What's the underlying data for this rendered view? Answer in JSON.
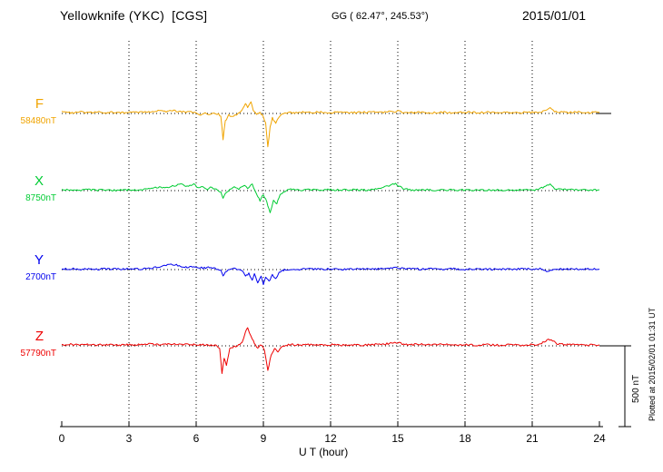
{
  "header": {
    "title": "Yellowknife (YKC)  [CGS]",
    "gg": "GG ( 62.47°, 245.53°)",
    "date": "2015/01/01"
  },
  "axis": {
    "xlabel": "U T (hour)",
    "tick_labels": [
      "0",
      "3",
      "6",
      "9",
      "12",
      "15",
      "18",
      "21",
      "24"
    ]
  },
  "scale_bar": {
    "label": "500 nT"
  },
  "plotted_at": "Plotted at 2015/02/01 01:31 UT",
  "chart_data": {
    "type": "line",
    "title": "Yellowknife (YKC) [CGS] magnetogram",
    "date": "2015/01/01",
    "gg_coordinates": "62.47°, 245.53°",
    "xlabel": "U T (hour)",
    "x_unit": "hour",
    "x_range": [
      0,
      24
    ],
    "x_ticks": [
      0,
      3,
      6,
      9,
      12,
      15,
      18,
      21,
      24
    ],
    "grid": "vertical-dotted-every-3h",
    "scale_bar_nT": 500,
    "series": [
      {
        "name": "F",
        "baseline_label": "58480nT",
        "baseline_nT": 58480,
        "color": "#f0a400",
        "points": [
          [
            0,
            8
          ],
          [
            0.4,
            5
          ],
          [
            0.8,
            9
          ],
          [
            1.2,
            5
          ],
          [
            1.6,
            8
          ],
          [
            2,
            5
          ],
          [
            2.4,
            8
          ],
          [
            2.8,
            5
          ],
          [
            3.2,
            8
          ],
          [
            3.6,
            6
          ],
          [
            4,
            10
          ],
          [
            4.3,
            16
          ],
          [
            4.6,
            10
          ],
          [
            5,
            18
          ],
          [
            5.3,
            12
          ],
          [
            5.6,
            9
          ],
          [
            6,
            5
          ],
          [
            6.2,
            -8
          ],
          [
            6.4,
            3
          ],
          [
            6.6,
            -6
          ],
          [
            6.8,
            2
          ],
          [
            7,
            -5
          ],
          [
            7.1,
            -18
          ],
          [
            7.2,
            -160
          ],
          [
            7.3,
            -45
          ],
          [
            7.45,
            -12
          ],
          [
            7.6,
            -22
          ],
          [
            7.8,
            -6
          ],
          [
            8,
            12
          ],
          [
            8.1,
            35
          ],
          [
            8.2,
            62
          ],
          [
            8.3,
            40
          ],
          [
            8.45,
            75
          ],
          [
            8.55,
            22
          ],
          [
            8.7,
            -8
          ],
          [
            8.85,
            6
          ],
          [
            9,
            -18
          ],
          [
            9.1,
            -60
          ],
          [
            9.2,
            -205
          ],
          [
            9.3,
            -85
          ],
          [
            9.4,
            -28
          ],
          [
            9.55,
            -65
          ],
          [
            9.7,
            -18
          ],
          [
            9.9,
            0
          ],
          [
            10.1,
            7
          ],
          [
            10.4,
            3
          ],
          [
            10.7,
            9
          ],
          [
            11,
            5
          ],
          [
            11.5,
            9
          ],
          [
            12,
            5
          ],
          [
            12.5,
            8
          ],
          [
            13,
            5
          ],
          [
            13.5,
            8
          ],
          [
            14,
            9
          ],
          [
            14.3,
            5
          ],
          [
            14.6,
            13
          ],
          [
            14.8,
            7
          ],
          [
            15,
            15
          ],
          [
            15.2,
            9
          ],
          [
            15.5,
            5
          ],
          [
            16,
            8
          ],
          [
            16.5,
            4
          ],
          [
            17,
            7
          ],
          [
            17.5,
            5
          ],
          [
            18,
            8
          ],
          [
            18.5,
            5
          ],
          [
            19,
            7
          ],
          [
            19.5,
            4
          ],
          [
            20,
            7
          ],
          [
            20.5,
            5
          ],
          [
            21,
            8
          ],
          [
            21.3,
            5
          ],
          [
            21.6,
            22
          ],
          [
            21.8,
            38
          ],
          [
            22,
            12
          ],
          [
            22.3,
            8
          ],
          [
            22.6,
            6
          ],
          [
            23,
            9
          ],
          [
            23.5,
            6
          ],
          [
            24,
            8
          ]
        ]
      },
      {
        "name": "X",
        "baseline_label": "8750nT",
        "baseline_nT": 8750,
        "color": "#00cc33",
        "points": [
          [
            0,
            4
          ],
          [
            0.4,
            7
          ],
          [
            0.8,
            3
          ],
          [
            1.2,
            6
          ],
          [
            1.6,
            3
          ],
          [
            2,
            6
          ],
          [
            2.4,
            2
          ],
          [
            2.8,
            5
          ],
          [
            3.2,
            3
          ],
          [
            3.6,
            7
          ],
          [
            4,
            10
          ],
          [
            4.3,
            22
          ],
          [
            4.6,
            15
          ],
          [
            5,
            30
          ],
          [
            5.3,
            42
          ],
          [
            5.6,
            28
          ],
          [
            5.9,
            38
          ],
          [
            6.1,
            18
          ],
          [
            6.3,
            28
          ],
          [
            6.5,
            10
          ],
          [
            6.7,
            22
          ],
          [
            6.9,
            5
          ],
          [
            7.1,
            -12
          ],
          [
            7.2,
            -50
          ],
          [
            7.3,
            -18
          ],
          [
            7.5,
            8
          ],
          [
            7.7,
            28
          ],
          [
            7.9,
            12
          ],
          [
            8.1,
            32
          ],
          [
            8.3,
            18
          ],
          [
            8.5,
            38
          ],
          [
            8.7,
            -18
          ],
          [
            8.85,
            -60
          ],
          [
            9,
            -25
          ],
          [
            9.15,
            -70
          ],
          [
            9.3,
            -140
          ],
          [
            9.45,
            -55
          ],
          [
            9.6,
            -80
          ],
          [
            9.75,
            -28
          ],
          [
            9.9,
            -8
          ],
          [
            10.1,
            5
          ],
          [
            10.4,
            9
          ],
          [
            10.7,
            3
          ],
          [
            11,
            7
          ],
          [
            11.5,
            3
          ],
          [
            12,
            6
          ],
          [
            12.5,
            3
          ],
          [
            13,
            6
          ],
          [
            13.5,
            3
          ],
          [
            14,
            9
          ],
          [
            14.3,
            18
          ],
          [
            14.6,
            32
          ],
          [
            14.9,
            42
          ],
          [
            15.1,
            22
          ],
          [
            15.3,
            9
          ],
          [
            15.6,
            4
          ],
          [
            16,
            7
          ],
          [
            16.5,
            3
          ],
          [
            17,
            5
          ],
          [
            17.5,
            3
          ],
          [
            18,
            5
          ],
          [
            18.5,
            2
          ],
          [
            19,
            4
          ],
          [
            19.5,
            2
          ],
          [
            20,
            5
          ],
          [
            20.5,
            3
          ],
          [
            21,
            4
          ],
          [
            21.3,
            7
          ],
          [
            21.6,
            28
          ],
          [
            21.8,
            42
          ],
          [
            22,
            13
          ],
          [
            22.3,
            7
          ],
          [
            22.7,
            4
          ],
          [
            23,
            7
          ],
          [
            23.5,
            3
          ],
          [
            24,
            5
          ]
        ]
      },
      {
        "name": "Y",
        "baseline_label": "2700nT",
        "baseline_nT": 2700,
        "color": "#0000ee",
        "points": [
          [
            0,
            3
          ],
          [
            0.4,
            5
          ],
          [
            0.8,
            2
          ],
          [
            1.2,
            5
          ],
          [
            1.6,
            2
          ],
          [
            2,
            4
          ],
          [
            2.4,
            2
          ],
          [
            2.8,
            4
          ],
          [
            3.2,
            2
          ],
          [
            3.6,
            4
          ],
          [
            4,
            7
          ],
          [
            4.3,
            16
          ],
          [
            4.6,
            26
          ],
          [
            5,
            30
          ],
          [
            5.3,
            22
          ],
          [
            5.6,
            13
          ],
          [
            6,
            18
          ],
          [
            6.3,
            9
          ],
          [
            6.6,
            13
          ],
          [
            6.9,
            4
          ],
          [
            7.1,
            -8
          ],
          [
            7.2,
            -40
          ],
          [
            7.3,
            -12
          ],
          [
            7.5,
            0
          ],
          [
            7.7,
            9
          ],
          [
            7.9,
            0
          ],
          [
            8.1,
            -15
          ],
          [
            8.2,
            -45
          ],
          [
            8.35,
            -20
          ],
          [
            8.5,
            -65
          ],
          [
            8.6,
            -30
          ],
          [
            8.75,
            -80
          ],
          [
            8.9,
            -40
          ],
          [
            9,
            -95
          ],
          [
            9.1,
            -45
          ],
          [
            9.25,
            -75
          ],
          [
            9.4,
            -30
          ],
          [
            9.55,
            -60
          ],
          [
            9.7,
            -20
          ],
          [
            9.85,
            -8
          ],
          [
            10,
            0
          ],
          [
            10.3,
            4
          ],
          [
            10.6,
            2
          ],
          [
            11,
            5
          ],
          [
            11.5,
            2
          ],
          [
            12,
            4
          ],
          [
            12.5,
            2
          ],
          [
            13,
            4
          ],
          [
            13.5,
            2
          ],
          [
            14,
            4
          ],
          [
            14.5,
            7
          ],
          [
            15,
            11
          ],
          [
            15.3,
            4
          ],
          [
            15.6,
            7
          ],
          [
            16,
            3
          ],
          [
            16.5,
            5
          ],
          [
            17,
            3
          ],
          [
            17.5,
            4
          ],
          [
            18,
            2
          ],
          [
            18.5,
            4
          ],
          [
            19,
            2
          ],
          [
            19.5,
            3
          ],
          [
            20,
            2
          ],
          [
            20.5,
            4
          ],
          [
            21,
            3
          ],
          [
            21.4,
            7
          ],
          [
            21.7,
            -14
          ],
          [
            22,
            4
          ],
          [
            22.4,
            2
          ],
          [
            22.8,
            5
          ],
          [
            23.2,
            2
          ],
          [
            23.6,
            4
          ],
          [
            24,
            3
          ]
        ]
      },
      {
        "name": "Z",
        "baseline_label": "57790nT",
        "baseline_nT": 57790,
        "color": "#ee0000",
        "points": [
          [
            0,
            6
          ],
          [
            0.4,
            9
          ],
          [
            0.8,
            5
          ],
          [
            1.2,
            8
          ],
          [
            1.6,
            5
          ],
          [
            2,
            8
          ],
          [
            2.4,
            4
          ],
          [
            2.8,
            7
          ],
          [
            3.2,
            5
          ],
          [
            3.6,
            8
          ],
          [
            4,
            11
          ],
          [
            4.4,
            7
          ],
          [
            4.8,
            13
          ],
          [
            5.2,
            8
          ],
          [
            5.6,
            11
          ],
          [
            6,
            6
          ],
          [
            6.3,
            9
          ],
          [
            6.6,
            4
          ],
          [
            6.9,
            0
          ],
          [
            7.05,
            -18
          ],
          [
            7.15,
            -170
          ],
          [
            7.25,
            -75
          ],
          [
            7.35,
            -125
          ],
          [
            7.5,
            -20
          ],
          [
            7.7,
            -5
          ],
          [
            7.9,
            5
          ],
          [
            8.05,
            20
          ],
          [
            8.2,
            88
          ],
          [
            8.3,
            112
          ],
          [
            8.45,
            55
          ],
          [
            8.6,
            18
          ],
          [
            8.75,
            -14
          ],
          [
            8.9,
            9
          ],
          [
            9.05,
            -28
          ],
          [
            9.2,
            -148
          ],
          [
            9.35,
            -55
          ],
          [
            9.5,
            -18
          ],
          [
            9.65,
            -38
          ],
          [
            9.8,
            -8
          ],
          [
            10,
            5
          ],
          [
            10.3,
            9
          ],
          [
            10.6,
            4
          ],
          [
            11,
            8
          ],
          [
            11.5,
            5
          ],
          [
            12,
            7
          ],
          [
            12.5,
            4
          ],
          [
            13,
            7
          ],
          [
            13.5,
            5
          ],
          [
            14,
            8
          ],
          [
            14.4,
            11
          ],
          [
            14.8,
            16
          ],
          [
            15,
            22
          ],
          [
            15.2,
            11
          ],
          [
            15.5,
            7
          ],
          [
            16,
            9
          ],
          [
            16.5,
            5
          ],
          [
            17,
            8
          ],
          [
            17.5,
            5
          ],
          [
            18,
            7
          ],
          [
            18.5,
            4
          ],
          [
            19,
            7
          ],
          [
            19.5,
            4
          ],
          [
            20,
            6
          ],
          [
            20.5,
            4
          ],
          [
            21,
            7
          ],
          [
            21.3,
            9
          ],
          [
            21.6,
            32
          ],
          [
            21.85,
            42
          ],
          [
            22.1,
            13
          ],
          [
            22.4,
            9
          ],
          [
            22.8,
            7
          ],
          [
            23.2,
            8
          ],
          [
            23.6,
            5
          ],
          [
            24,
            7
          ]
        ]
      }
    ]
  }
}
